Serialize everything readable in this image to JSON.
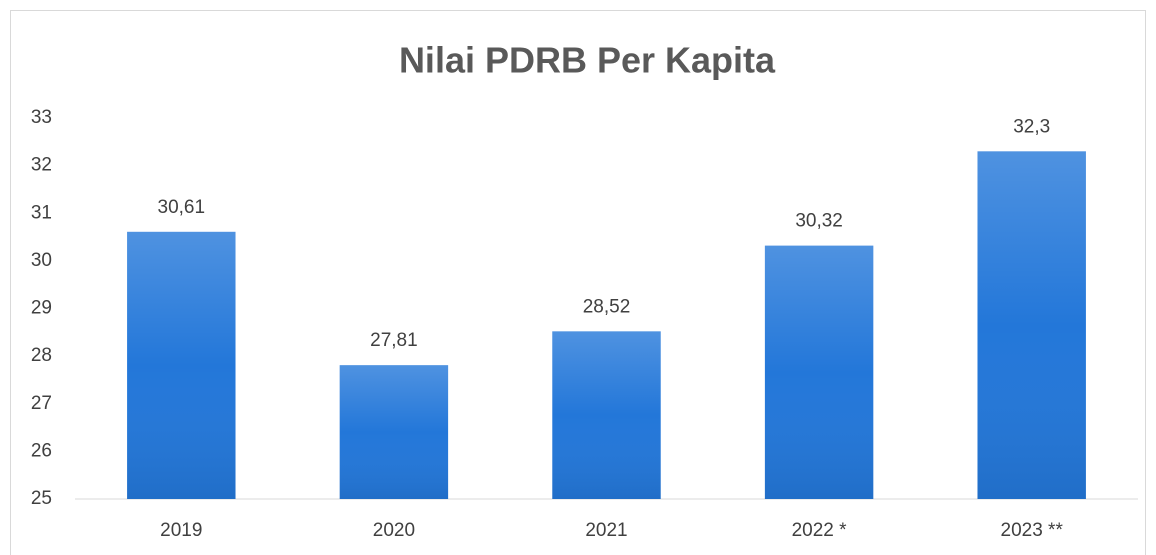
{
  "chart_data": {
    "type": "bar",
    "title": "Nilai PDRB Per Kapita",
    "categories": [
      "2019",
      "2020",
      "2021",
      "2022 *",
      "2023 **"
    ],
    "values": [
      30.61,
      27.81,
      28.52,
      30.32,
      32.3
    ],
    "value_labels": [
      "30,61",
      "27,81",
      "28,52",
      "30,32",
      "32,3"
    ],
    "color": "#2377d9",
    "ylim": [
      25,
      33
    ],
    "yticks": [
      25,
      26,
      27,
      28,
      29,
      30,
      31,
      32,
      33
    ],
    "grid": false
  }
}
